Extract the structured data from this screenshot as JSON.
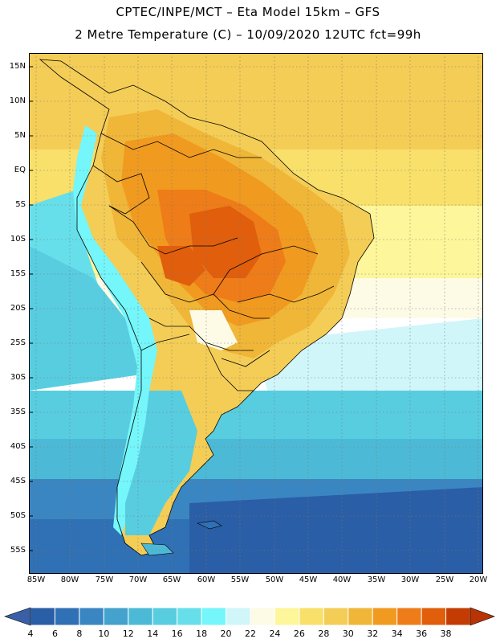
{
  "title": {
    "line1": "CPTEC/INPE/MCT –  Eta Model 15km – GFS",
    "line2": "2 Metre Temperature (C) – 10/09/2020 12UTC fct=99h"
  },
  "lat_labels": [
    "15N",
    "10N",
    "5N",
    "EQ",
    "5S",
    "10S",
    "15S",
    "20S",
    "25S",
    "30S",
    "35S",
    "40S",
    "45S",
    "50S",
    "55S"
  ],
  "lon_labels": [
    "85W",
    "80W",
    "75W",
    "70W",
    "65W",
    "60W",
    "55W",
    "50W",
    "45W",
    "40W",
    "35W",
    "30W",
    "25W",
    "20W"
  ],
  "colorbar": {
    "labels": [
      "4",
      "6",
      "8",
      "10",
      "12",
      "14",
      "16",
      "18",
      "20",
      "22",
      "24",
      "26",
      "28",
      "30",
      "32",
      "34",
      "36",
      "38"
    ],
    "colors": [
      "#2a5ea6",
      "#3070b4",
      "#3a86c2",
      "#44a2cc",
      "#4cbad6",
      "#58cde0",
      "#66dfea",
      "#74f6fa",
      "#d0f6fa",
      "#fdfbe6",
      "#fdf69a",
      "#f8e06a",
      "#f4cd56",
      "#f0b638",
      "#f09a20",
      "#ee7c18",
      "#e05e0c",
      "#c43c04"
    ],
    "left_arrow_color": "#3a5fa6",
    "right_arrow_color": "#b83404"
  }
}
